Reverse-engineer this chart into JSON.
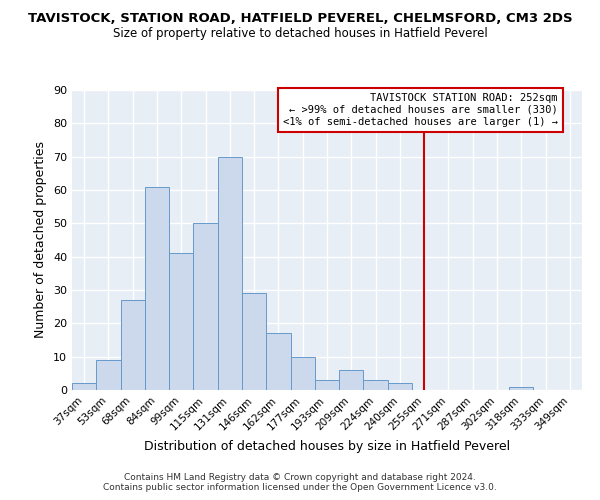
{
  "title": "TAVISTOCK, STATION ROAD, HATFIELD PEVEREL, CHELMSFORD, CM3 2DS",
  "subtitle": "Size of property relative to detached houses in Hatfield Peverel",
  "xlabel": "Distribution of detached houses by size in Hatfield Peverel",
  "ylabel": "Number of detached properties",
  "categories": [
    "37sqm",
    "53sqm",
    "68sqm",
    "84sqm",
    "99sqm",
    "115sqm",
    "131sqm",
    "146sqm",
    "162sqm",
    "177sqm",
    "193sqm",
    "209sqm",
    "224sqm",
    "240sqm",
    "255sqm",
    "271sqm",
    "287sqm",
    "302sqm",
    "318sqm",
    "333sqm",
    "349sqm"
  ],
  "values": [
    2,
    9,
    27,
    61,
    41,
    50,
    70,
    29,
    17,
    10,
    3,
    6,
    3,
    2,
    0,
    0,
    0,
    0,
    1,
    0,
    0
  ],
  "bar_color": "#ccd9ec",
  "bar_edge_color": "#6699cc",
  "vline_x_index": 14,
  "vline_color": "#cc0000",
  "annotation_title": "TAVISTOCK STATION ROAD: 252sqm",
  "annotation_line1": "← >99% of detached houses are smaller (330)",
  "annotation_line2": "<1% of semi-detached houses are larger (1) →",
  "annotation_box_color": "#cc0000",
  "ylim": [
    0,
    90
  ],
  "yticks": [
    0,
    10,
    20,
    30,
    40,
    50,
    60,
    70,
    80,
    90
  ],
  "bg_color": "#e8eef6",
  "footer": "Contains HM Land Registry data © Crown copyright and database right 2024.\nContains public sector information licensed under the Open Government Licence v3.0.",
  "title_fontsize": 9.5,
  "subtitle_fontsize": 8.5
}
